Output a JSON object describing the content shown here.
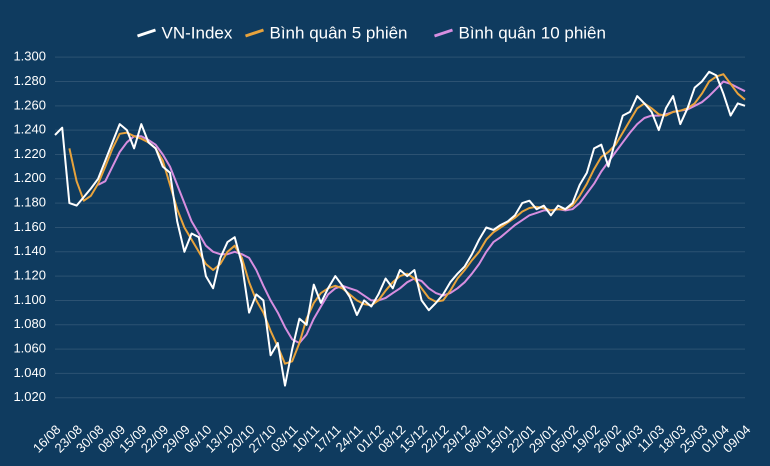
{
  "chart_data": {
    "type": "line",
    "categories": [
      "16/08",
      null,
      null,
      "23/08",
      null,
      null,
      "30/08",
      null,
      null,
      "08/09",
      null,
      null,
      "15/09",
      null,
      null,
      "22/09",
      null,
      null,
      "29/09",
      null,
      null,
      "06/10",
      null,
      null,
      "13/10",
      null,
      null,
      "20/10",
      null,
      null,
      "27/10",
      null,
      null,
      "03/11",
      null,
      null,
      "10/11",
      null,
      null,
      "17/11",
      null,
      null,
      "24/11",
      null,
      null,
      "01/12",
      null,
      null,
      "08/12",
      null,
      null,
      "15/12",
      null,
      null,
      "22/12",
      null,
      null,
      "29/12",
      null,
      null,
      "08/01",
      null,
      null,
      "15/01",
      null,
      null,
      "22/01",
      null,
      null,
      "29/01",
      null,
      null,
      "05/02",
      null,
      null,
      "19/02",
      null,
      null,
      "26/02",
      null,
      null,
      "04/03",
      null,
      null,
      "11/03",
      null,
      null,
      "18/03",
      null,
      null,
      "25/03",
      null,
      null,
      "01/04",
      null,
      null,
      "09/04"
    ],
    "series": [
      {
        "name": "VN-Index",
        "color": "#ffffff",
        "values": [
          1236,
          1242,
          1180,
          1178,
          1185,
          1192,
          1200,
          1215,
          1230,
          1245,
          1240,
          1225,
          1245,
          1230,
          1225,
          1210,
          1205,
          1165,
          1140,
          1155,
          1152,
          1120,
          1110,
          1135,
          1148,
          1152,
          1130,
          1090,
          1105,
          1100,
          1055,
          1065,
          1030,
          1060,
          1085,
          1080,
          1113,
          1098,
          1110,
          1120,
          1112,
          1103,
          1088,
          1100,
          1095,
          1105,
          1118,
          1110,
          1125,
          1120,
          1125,
          1100,
          1092,
          1098,
          1105,
          1115,
          1122,
          1128,
          1138,
          1150,
          1160,
          1158,
          1162,
          1165,
          1170,
          1180,
          1182,
          1175,
          1178,
          1170,
          1178,
          1175,
          1180,
          1195,
          1205,
          1225,
          1228,
          1210,
          1232,
          1252,
          1255,
          1268,
          1262,
          1255,
          1240,
          1258,
          1268,
          1245,
          1258,
          1275,
          1280,
          1288,
          1285,
          1270,
          1252,
          1262,
          1260
        ]
      },
      {
        "name": "Bình quân 5 phiên",
        "color": "#e8a33c",
        "values": [
          null,
          null,
          1225,
          1198,
          1182,
          1186,
          1196,
          1210,
          1225,
          1237,
          1238,
          1235,
          1233,
          1230,
          1225,
          1215,
          1195,
          1175,
          1160,
          1150,
          1140,
          1130,
          1125,
          1130,
          1140,
          1145,
          1135,
          1115,
          1100,
          1090,
          1075,
          1062,
          1048,
          1050,
          1065,
          1085,
          1098,
          1106,
          1110,
          1112,
          1110,
          1105,
          1100,
          1097,
          1096,
          1100,
          1108,
          1115,
          1120,
          1122,
          1118,
          1110,
          1102,
          1099,
          1100,
          1108,
          1118,
          1125,
          1133,
          1140,
          1150,
          1156,
          1160,
          1164,
          1168,
          1173,
          1176,
          1177,
          1176,
          1174,
          1175,
          1175,
          1178,
          1186,
          1196,
          1208,
          1218,
          1222,
          1228,
          1238,
          1248,
          1258,
          1262,
          1258,
          1253,
          1252,
          1255,
          1256,
          1258,
          1262,
          1270,
          1280,
          1284,
          1286,
          1278,
          1270,
          1265
        ]
      },
      {
        "name": "Bình quân 10 phiên",
        "color": "#d78ee0",
        "values": [
          null,
          null,
          null,
          null,
          null,
          null,
          1195,
          1198,
          1210,
          1222,
          1230,
          1235,
          1235,
          1232,
          1228,
          1220,
          1210,
          1195,
          1180,
          1165,
          1155,
          1145,
          1140,
          1138,
          1138,
          1140,
          1138,
          1135,
          1125,
          1112,
          1100,
          1090,
          1078,
          1068,
          1065,
          1072,
          1085,
          1095,
          1105,
          1110,
          1112,
          1110,
          1108,
          1104,
          1100,
          1100,
          1102,
          1106,
          1110,
          1115,
          1118,
          1116,
          1110,
          1106,
          1104,
          1106,
          1110,
          1115,
          1122,
          1130,
          1140,
          1148,
          1152,
          1157,
          1162,
          1166,
          1170,
          1172,
          1174,
          1174,
          1175,
          1174,
          1175,
          1180,
          1188,
          1196,
          1206,
          1214,
          1222,
          1230,
          1238,
          1245,
          1250,
          1252,
          1252,
          1253,
          1255,
          1256,
          1257,
          1260,
          1263,
          1268,
          1274,
          1280,
          1278,
          1275,
          1272
        ]
      }
    ],
    "ylim": [
      1005,
      1310
    ],
    "yticks": [
      {
        "value": 1020,
        "label": "1.020"
      },
      {
        "value": 1040,
        "label": "1.040"
      },
      {
        "value": 1060,
        "label": "1.060"
      },
      {
        "value": 1080,
        "label": "1.080"
      },
      {
        "value": 1100,
        "label": "1.100"
      },
      {
        "value": 1120,
        "label": "1.120"
      },
      {
        "value": 1140,
        "label": "1.140"
      },
      {
        "value": 1160,
        "label": "1.160"
      },
      {
        "value": 1180,
        "label": "1.180"
      },
      {
        "value": 1200,
        "label": "1.200"
      },
      {
        "value": 1220,
        "label": "1.220"
      },
      {
        "value": 1240,
        "label": "1.240"
      },
      {
        "value": 1260,
        "label": "1.260"
      },
      {
        "value": 1280,
        "label": "1.280"
      },
      {
        "value": 1300,
        "label": "1.300"
      }
    ],
    "grid": true,
    "legend": "top"
  }
}
